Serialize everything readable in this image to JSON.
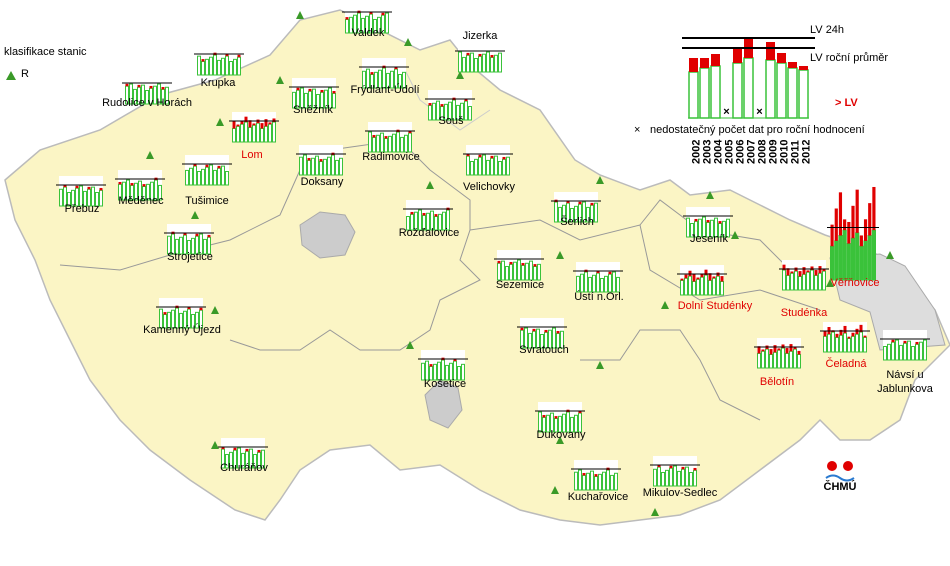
{
  "legend": {
    "title": "klasifikace stanic",
    "class_label": "R",
    "lv_24h": "LV 24h",
    "lv_annual": "LV roční průměr",
    "years": [
      "2002",
      "2003",
      "2004",
      "2005",
      "2006",
      "2007",
      "2008",
      "2009",
      "2010",
      "2011",
      "2012"
    ],
    "exceed": "> LV",
    "insufficient": "nedostatečný počet dat pro roční hodnocení"
  },
  "logo": "ČHMÚ",
  "stations": [
    {
      "name": "Valdek",
      "color": "#000000"
    },
    {
      "name": "Jizerka",
      "color": "#000000"
    },
    {
      "name": "Krupka",
      "color": "#000000"
    },
    {
      "name": "Rudolice v Horách",
      "color": "#000000"
    },
    {
      "name": "Frýdlant-Údolí",
      "color": "#000000"
    },
    {
      "name": "Sněžník",
      "color": "#000000"
    },
    {
      "name": "Souš",
      "color": "#000000"
    },
    {
      "name": "Lom",
      "color": "#e00000"
    },
    {
      "name": "Radimovice",
      "color": "#000000"
    },
    {
      "name": "Velichovky",
      "color": "#000000"
    },
    {
      "name": "Doksany",
      "color": "#000000"
    },
    {
      "name": "Přebuz",
      "color": "#000000"
    },
    {
      "name": "Měděnec",
      "color": "#000000"
    },
    {
      "name": "Tušimice",
      "color": "#000000"
    },
    {
      "name": "Rožďalovice",
      "color": "#000000"
    },
    {
      "name": "Šerlich",
      "color": "#000000"
    },
    {
      "name": "Jeseník",
      "color": "#000000"
    },
    {
      "name": "Strojetice",
      "color": "#000000"
    },
    {
      "name": "Sezemice",
      "color": "#000000"
    },
    {
      "name": "Ústí n.Orl.",
      "color": "#000000"
    },
    {
      "name": "Dolní Studénky",
      "color": "#e00000"
    },
    {
      "name": "Věřňovice",
      "color": "#e00000"
    },
    {
      "name": "Studénka",
      "color": "#e00000"
    },
    {
      "name": "Kamenný Újezd",
      "color": "#000000"
    },
    {
      "name": "Svratouch",
      "color": "#000000"
    },
    {
      "name": "Košetice",
      "color": "#000000"
    },
    {
      "name": "Čeladná",
      "color": "#e00000"
    },
    {
      "name": "Bělotín",
      "color": "#e00000"
    },
    {
      "name": "Návsí u Jablunkova",
      "color": "#000000"
    },
    {
      "name": "Dukovany",
      "color": "#000000"
    },
    {
      "name": "Churáňov",
      "color": "#000000"
    },
    {
      "name": "Kuchařovice",
      "color": "#000000"
    },
    {
      "name": "Mikulov-Sedlec",
      "color": "#000000"
    }
  ]
}
